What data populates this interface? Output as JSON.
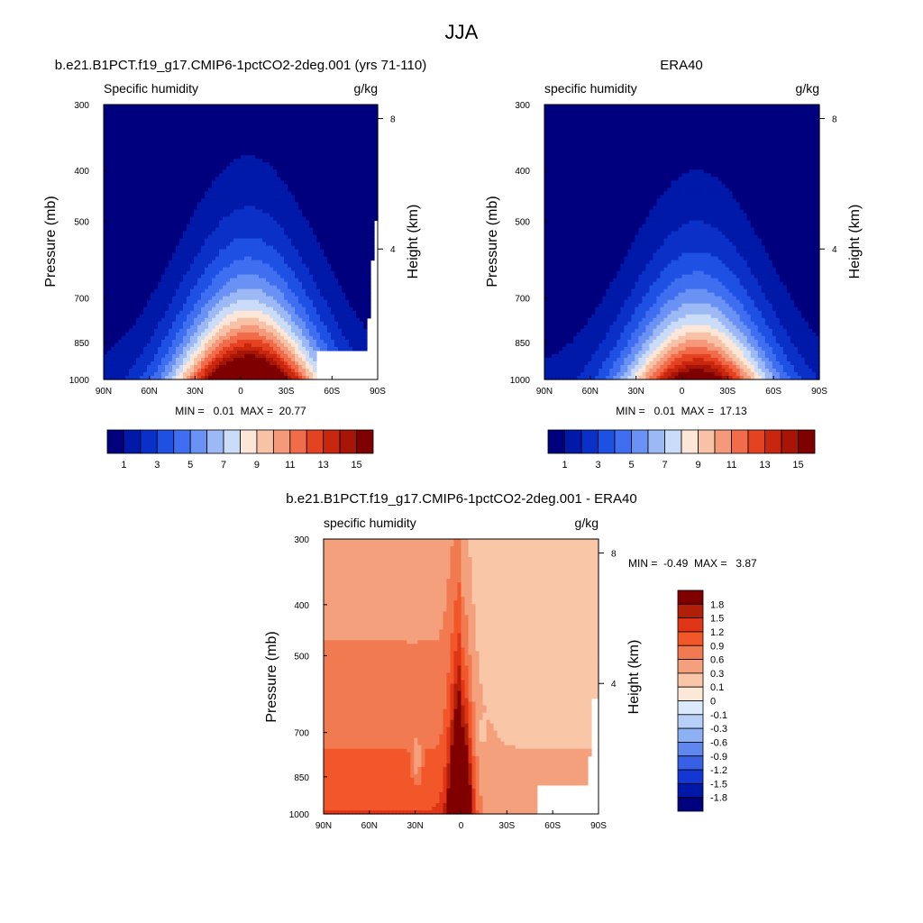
{
  "figure": {
    "title": "JJA"
  },
  "panels": [
    {
      "id": "model",
      "title": "b.e21.B1PCT.f19_g17.CMIP6-1pctCO2-2deg.001 (yrs 71-110)",
      "left_label": "Specific humidity",
      "right_label": "g/kg",
      "y_label": "Pressure (mb)",
      "y2_label": "Height (km)",
      "stats": "MIN =   0.01  MAX =  20.77",
      "masked_region": true
    },
    {
      "id": "obs",
      "title": "ERA40",
      "left_label": "specific humidity",
      "right_label": "g/kg",
      "y_label": "Pressure (mb)",
      "y2_label": "Height (km)",
      "stats": "MIN =   0.01  MAX =  17.13",
      "masked_region": false
    },
    {
      "id": "diff",
      "title": "b.e21.B1PCT.f19_g17.CMIP6-1pctCO2-2deg.001 - ERA40",
      "left_label": "specific humidity",
      "right_label": "g/kg",
      "y_label": "Pressure (mb)",
      "y2_label": "Height (km)",
      "stats": "MIN =  -0.49  MAX =   3.87",
      "masked_region": true
    }
  ],
  "chart_data": [
    {
      "type": "heatmap",
      "title": "b.e21.B1PCT.f19_g17.CMIP6-1pctCO2-2deg.001 (yrs 71-110)",
      "variable": "Specific humidity",
      "units": "g/kg",
      "xlabel": "",
      "ylabel": "Pressure (mb)",
      "y2label": "Height (km)",
      "x_ticks": [
        "90N",
        "60N",
        "30N",
        "0",
        "30S",
        "60S",
        "90S"
      ],
      "y_ticks": [
        "300",
        "400",
        "500",
        "700",
        "850",
        "1000"
      ],
      "y2_ticks": [
        "8",
        "4"
      ],
      "peak_latitude": -5,
      "peak_value": 20.77,
      "min": 0.01,
      "max": 20.77
    },
    {
      "type": "heatmap",
      "title": "ERA40",
      "variable": "specific humidity",
      "units": "g/kg",
      "xlabel": "",
      "ylabel": "Pressure (mb)",
      "y2label": "Height (km)",
      "x_ticks": [
        "90N",
        "60N",
        "30N",
        "0",
        "30S",
        "60S",
        "90S"
      ],
      "y_ticks": [
        "300",
        "400",
        "500",
        "700",
        "850",
        "1000"
      ],
      "y2_ticks": [
        "8",
        "4"
      ],
      "peak_latitude": -10,
      "peak_value": 17.13,
      "min": 0.01,
      "max": 17.13
    },
    {
      "type": "heatmap",
      "title": "b.e21.B1PCT.f19_g17.CMIP6-1pctCO2-2deg.001 - ERA40",
      "variable": "specific humidity",
      "units": "g/kg",
      "xlabel": "",
      "ylabel": "Pressure (mb)",
      "y2label": "Height (km)",
      "x_ticks": [
        "90N",
        "60N",
        "30N",
        "0",
        "30S",
        "60S",
        "90S"
      ],
      "y_ticks": [
        "300",
        "400",
        "500",
        "700",
        "850",
        "1000"
      ],
      "y2_ticks": [
        "8",
        "4"
      ],
      "min": -0.49,
      "max": 3.87
    }
  ],
  "colorbars": {
    "abs": {
      "labels": [
        "1",
        "3",
        "5",
        "7",
        "9",
        "11",
        "13",
        "15"
      ],
      "colors": [
        "#00007f",
        "#0019a8",
        "#0a30c8",
        "#1f50e4",
        "#3f6ff0",
        "#6a92f4",
        "#9cb9f6",
        "#cbdcf8",
        "#fbe6d8",
        "#f8c2a6",
        "#f5997a",
        "#f06c4a",
        "#e54222",
        "#c8260e",
        "#a61506",
        "#7f0000"
      ]
    },
    "diff": {
      "labels": [
        "1.8",
        "1.5",
        "1.2",
        "0.9",
        "0.6",
        "0.3",
        "0.1",
        "0",
        "-0.1",
        "-0.3",
        "-0.6",
        "-0.9",
        "-1.2",
        "-1.5",
        "-1.8"
      ],
      "colors": [
        "#800000",
        "#b11f09",
        "#e03516",
        "#f2572a",
        "#f27a50",
        "#f5a07c",
        "#f9c6a7",
        "#fde7d6",
        "#dce8fb",
        "#b8cff8",
        "#8eb0f4",
        "#5f87ee",
        "#3860e6",
        "#1437d4",
        "#0018a8",
        "#00007f"
      ]
    }
  }
}
